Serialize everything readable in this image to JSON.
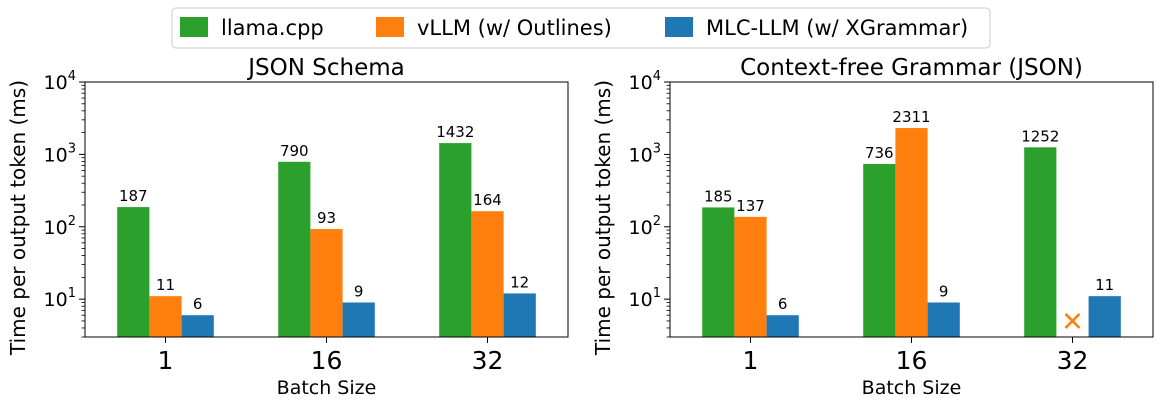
{
  "colors": {
    "llama.cpp": "#2ca02c",
    "vLLM (w/ Outlines)": "#ff7f0e",
    "MLC-LLM (w/ XGrammar)": "#1f77b4",
    "axis": "#000000",
    "background": "#ffffff"
  },
  "legend": {
    "placement": "top-center",
    "entries": [
      "llama.cpp",
      "vLLM (w/ Outlines)",
      "MLC-LLM (w/ XGrammar)"
    ]
  },
  "chart_data": [
    {
      "type": "bar",
      "title": "JSON Schema",
      "xlabel": "Batch Size",
      "ylabel": "Time per output token (ms)",
      "yscale": "log",
      "ylim": [
        3,
        10000
      ],
      "yticks": [
        {
          "value": 10,
          "base": "10",
          "exp": "1"
        },
        {
          "value": 100,
          "base": "10",
          "exp": "2"
        },
        {
          "value": 1000,
          "base": "10",
          "exp": "3"
        },
        {
          "value": 10000,
          "base": "10",
          "exp": "4"
        }
      ],
      "categories": [
        "1",
        "16",
        "32"
      ],
      "series": [
        {
          "name": "llama.cpp",
          "values": [
            187,
            790,
            1432
          ],
          "labels": [
            "187",
            "790",
            "1432"
          ]
        },
        {
          "name": "vLLM (w/ Outlines)",
          "values": [
            11,
            93,
            164
          ],
          "labels": [
            "11",
            "93",
            "164"
          ]
        },
        {
          "name": "MLC-LLM (w/ XGrammar)",
          "values": [
            6,
            9,
            12
          ],
          "labels": [
            "6",
            "9",
            "12"
          ]
        }
      ],
      "missing": []
    },
    {
      "type": "bar",
      "title": "Context-free Grammar (JSON)",
      "xlabel": "Batch Size",
      "ylabel": "Time per output token (ms)",
      "yscale": "log",
      "ylim": [
        3,
        10000
      ],
      "yticks": [
        {
          "value": 10,
          "base": "10",
          "exp": "1"
        },
        {
          "value": 100,
          "base": "10",
          "exp": "2"
        },
        {
          "value": 1000,
          "base": "10",
          "exp": "3"
        },
        {
          "value": 10000,
          "base": "10",
          "exp": "4"
        }
      ],
      "categories": [
        "1",
        "16",
        "32"
      ],
      "series": [
        {
          "name": "llama.cpp",
          "values": [
            185,
            736,
            1252
          ],
          "labels": [
            "185",
            "736",
            "1252"
          ]
        },
        {
          "name": "vLLM (w/ Outlines)",
          "values": [
            137,
            2311,
            null
          ],
          "labels": [
            "137",
            "2311",
            null
          ]
        },
        {
          "name": "MLC-LLM (w/ XGrammar)",
          "values": [
            6,
            9,
            11
          ],
          "labels": [
            "6",
            "9",
            "11"
          ]
        }
      ],
      "missing": [
        {
          "series": "vLLM (w/ Outlines)",
          "category": "32",
          "marker": "x"
        }
      ]
    }
  ]
}
